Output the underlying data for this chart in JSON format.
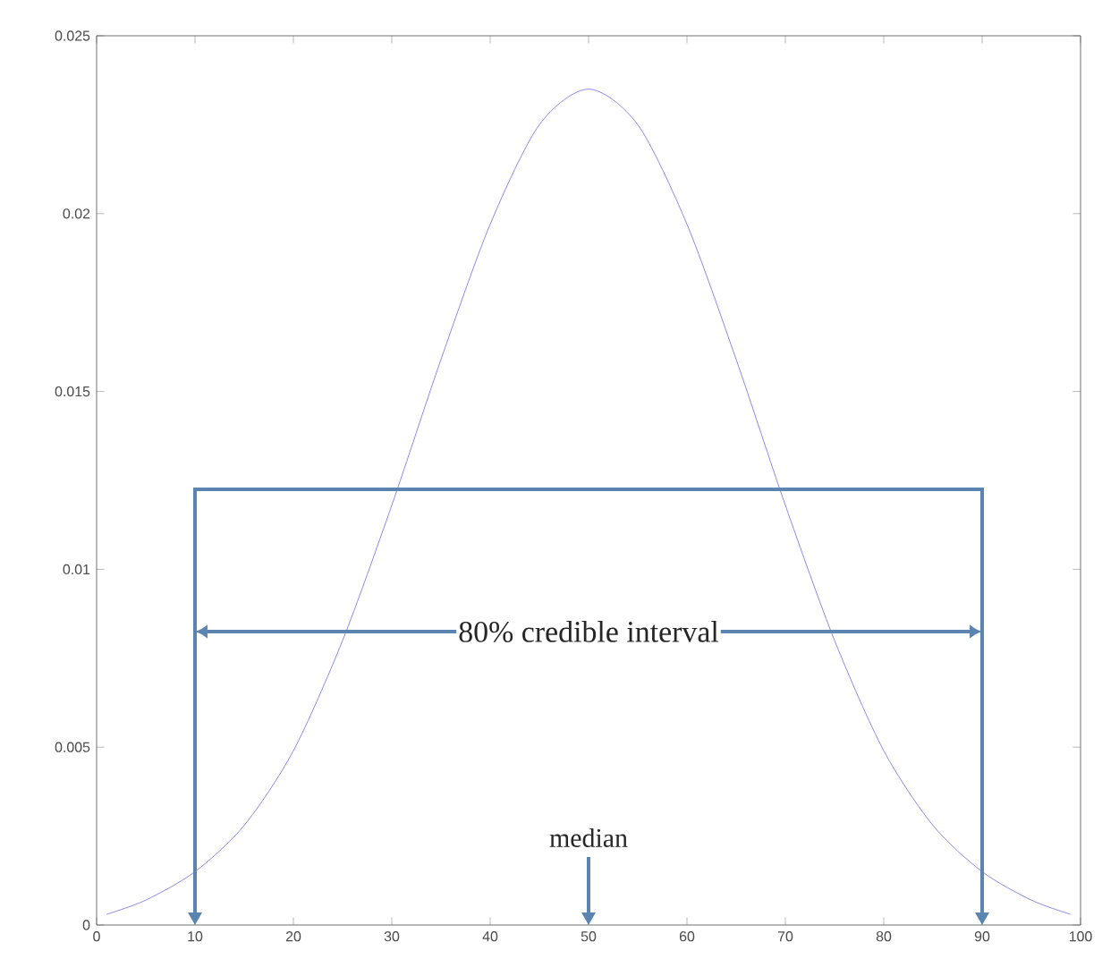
{
  "chart_data": {
    "type": "line",
    "x": [
      1,
      5,
      10,
      15,
      20,
      25,
      30,
      35,
      40,
      45,
      50,
      55,
      60,
      65,
      70,
      75,
      80,
      85,
      90,
      95,
      99
    ],
    "series": [
      {
        "color": "#6b6be6",
        "values": [
          0.0003,
          0.0007,
          0.0015,
          0.0028,
          0.0049,
          0.008,
          0.0118,
          0.0159,
          0.0197,
          0.0225,
          0.0235,
          0.0225,
          0.0197,
          0.0159,
          0.0118,
          0.008,
          0.0049,
          0.0028,
          0.0015,
          0.0007,
          0.0003
        ]
      }
    ],
    "xlim": [
      0,
      100
    ],
    "ylim": [
      0,
      0.025
    ],
    "xticks": [
      0,
      10,
      20,
      30,
      40,
      50,
      60,
      70,
      80,
      90,
      100
    ],
    "yticks": [
      0,
      0.005,
      0.01,
      0.015,
      0.02,
      0.025
    ],
    "ref_lines": [
      {
        "axis": "x",
        "value": 10,
        "color": "#5b84b1"
      },
      {
        "axis": "x",
        "value": 90,
        "color": "#5b84b1"
      },
      {
        "axis": "x",
        "value": 50,
        "label": "median",
        "color": "#5b84b1"
      }
    ],
    "annotations": [
      "80% credible interval"
    ],
    "grid": false,
    "marker": "none",
    "line_style": "solid"
  }
}
